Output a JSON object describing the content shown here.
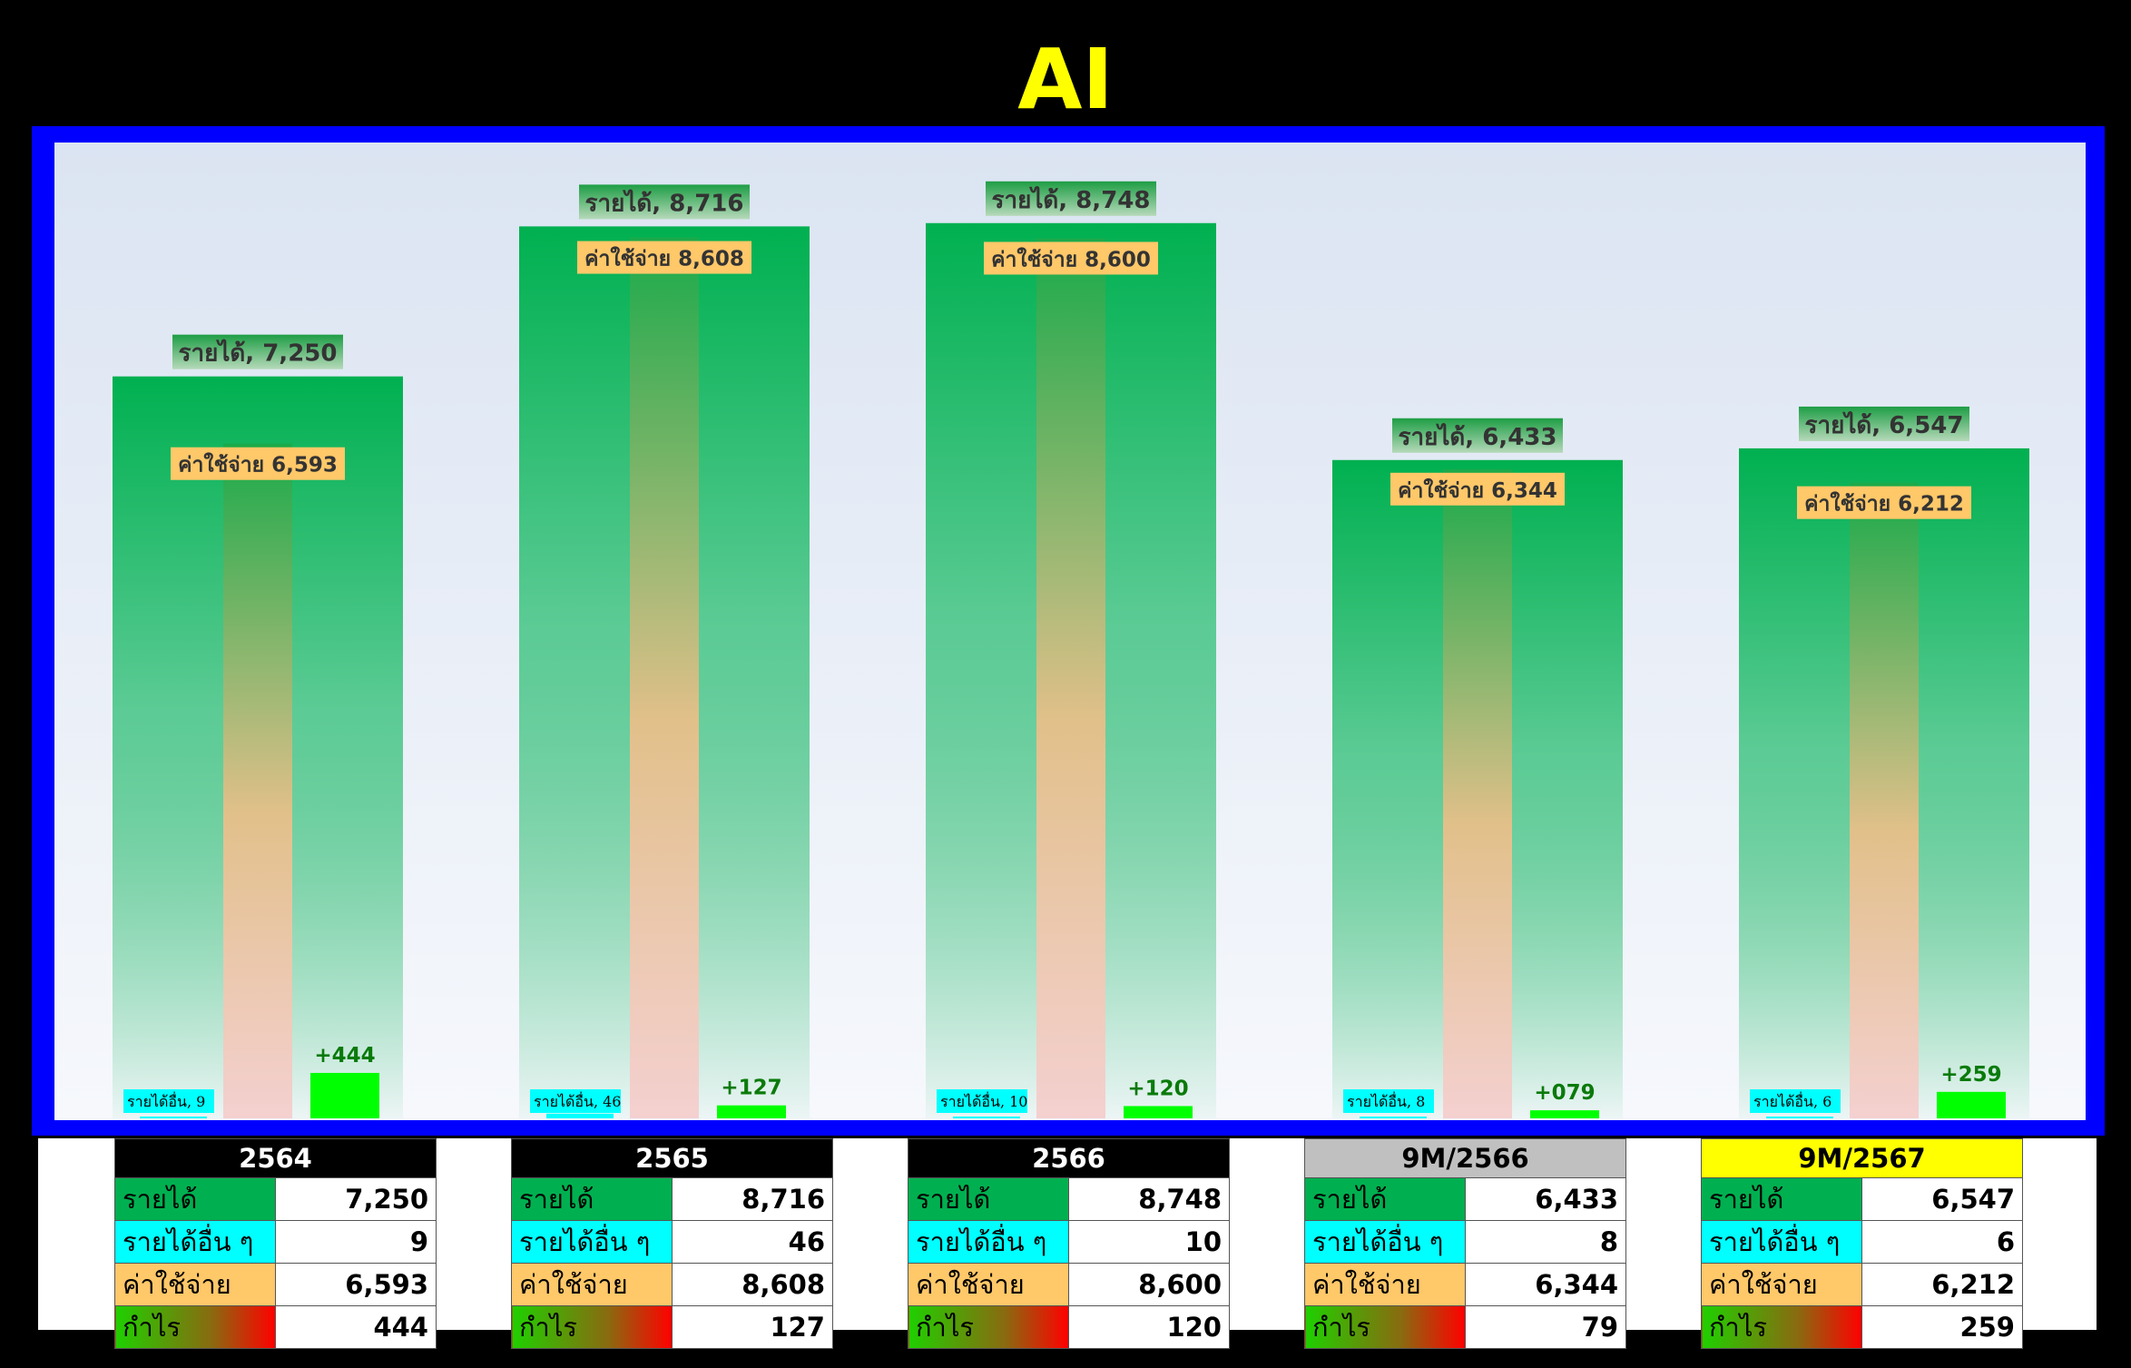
{
  "title": "AI",
  "chart_data": {
    "type": "bar",
    "categories": [
      "2564",
      "2565",
      "2566",
      "9M/2566",
      "9M/2567"
    ],
    "series": [
      {
        "name": "รายได้",
        "label": "รายได้,",
        "values": [
          7250,
          8716,
          8748,
          6433,
          6547
        ]
      },
      {
        "name": "รายได้อื่น",
        "label": "รายได้อื่น,",
        "values": [
          9,
          46,
          10,
          8,
          6
        ]
      },
      {
        "name": "ค่าใช้จ่าย",
        "label": "ค่าใช้จ่าย",
        "values": [
          6593,
          8608,
          8600,
          6344,
          6212
        ]
      },
      {
        "name": "กำไร",
        "values": [
          444,
          127,
          120,
          79,
          259
        ]
      }
    ],
    "profit_labels": [
      "+444",
      "+127",
      "+120",
      "+079",
      "+259"
    ],
    "value_labels": {
      "revenue": [
        "7,250",
        "8,716",
        "8,748",
        "6,433",
        "6,547"
      ],
      "other": [
        "9",
        "46",
        "10",
        "8",
        "6"
      ],
      "expense": [
        "6,593",
        "8,608",
        "8,600",
        "6,344",
        "6,212"
      ]
    },
    "ylim": [
      0,
      9500
    ],
    "colors": {
      "revenue": "#00b050",
      "other_income": "#00ffff",
      "expense": "#ffc869",
      "profit": "#00ff00",
      "frame": "#0000ff",
      "title": "#ffff00"
    }
  },
  "table": {
    "row_labels": [
      "รายได้",
      "รายได้อื่น ๆ",
      "ค่าใช้จ่าย",
      "กำไร"
    ],
    "periods": [
      {
        "header": "2564",
        "style": "black",
        "values": [
          "7,250",
          "9",
          "6,593",
          "444"
        ]
      },
      {
        "header": "2565",
        "style": "black",
        "values": [
          "8,716",
          "46",
          "8,608",
          "127"
        ]
      },
      {
        "header": "2566",
        "style": "black",
        "values": [
          "8,748",
          "10",
          "8,600",
          "120"
        ]
      },
      {
        "header": "9M/2566",
        "style": "grey",
        "values": [
          "6,433",
          "8",
          "6,344",
          "79"
        ]
      },
      {
        "header": "9M/2567",
        "style": "yellow",
        "values": [
          "6,547",
          "6",
          "6,212",
          "259"
        ]
      }
    ]
  }
}
